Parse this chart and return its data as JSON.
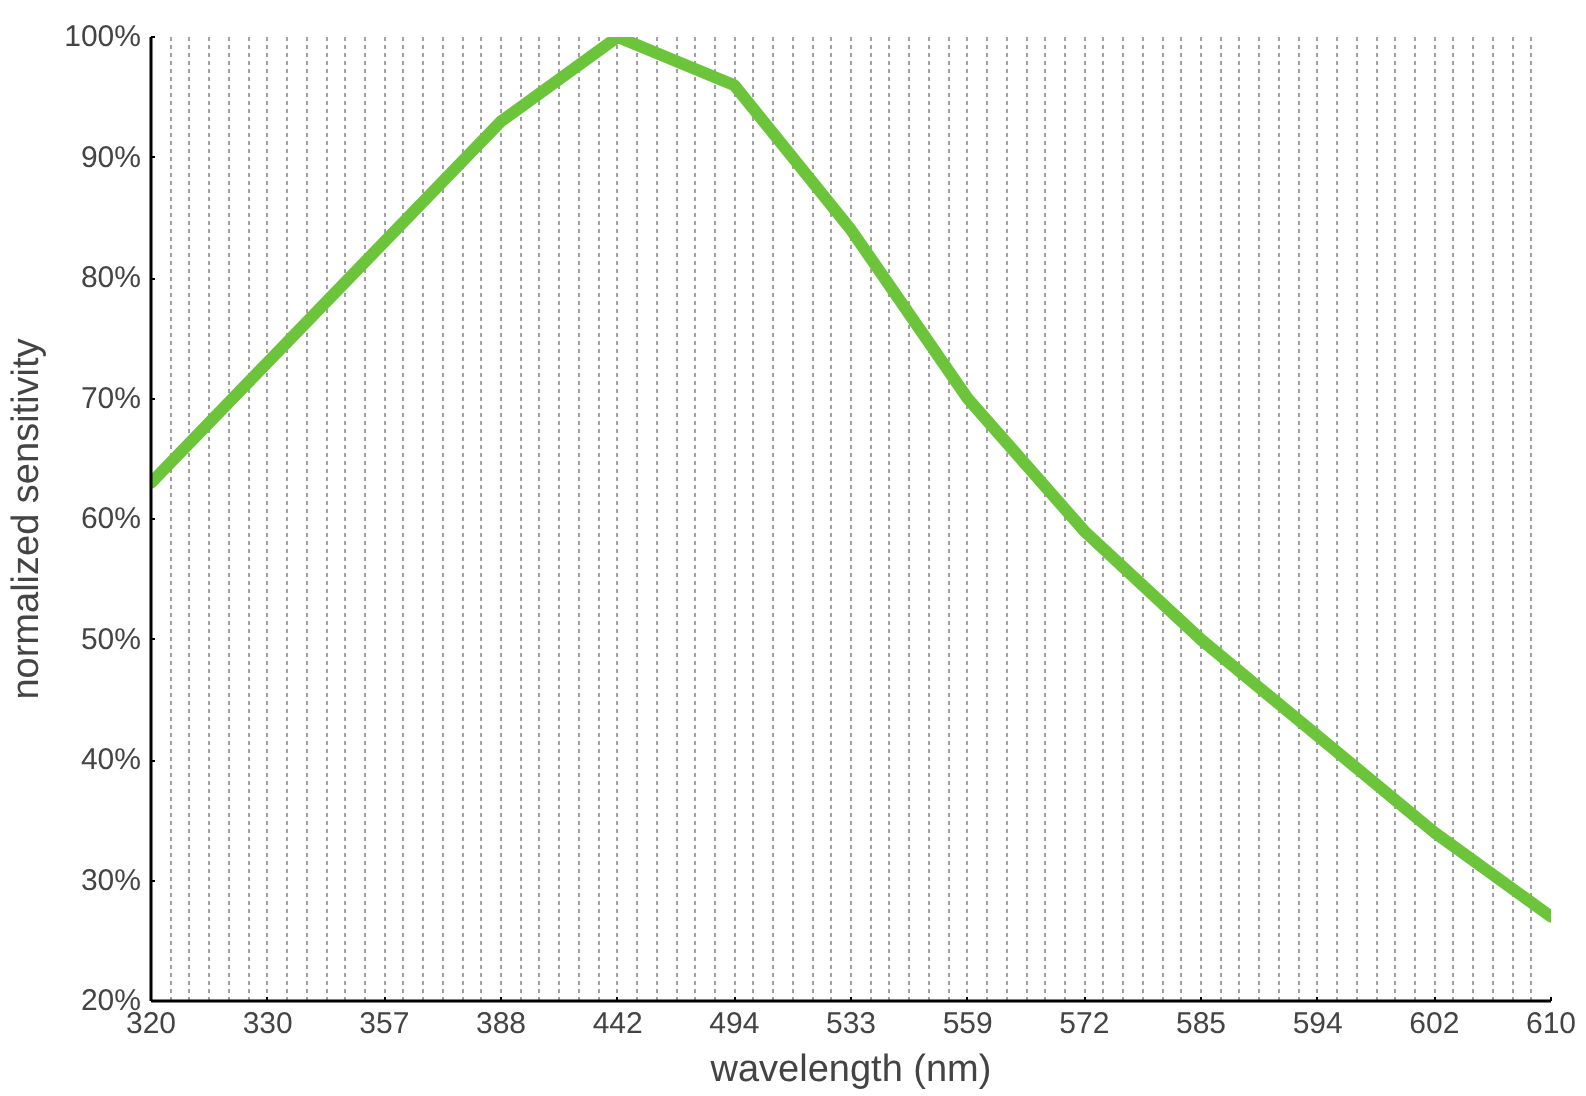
{
  "chart_data": {
    "type": "line",
    "xlabel": "wavelength (nm)",
    "ylabel": "normalized sensitivity",
    "categories": [
      "320",
      "330",
      "357",
      "388",
      "442",
      "494",
      "533",
      "559",
      "572",
      "585",
      "594",
      "602",
      "610"
    ],
    "series": [
      {
        "color": "#6cc43a",
        "values": [
          63,
          73,
          83,
          93,
          100,
          96,
          84,
          70,
          59,
          50,
          42,
          34,
          27
        ]
      }
    ],
    "ylim": [
      20,
      100
    ],
    "yticks": [
      {
        "value": 20,
        "label": "20%"
      },
      {
        "value": 30,
        "label": "30%"
      },
      {
        "value": 40,
        "label": "40%"
      },
      {
        "value": 50,
        "label": "50%"
      },
      {
        "value": 60,
        "label": "60%"
      },
      {
        "value": 70,
        "label": "70%"
      },
      {
        "value": 80,
        "label": "80%"
      },
      {
        "value": 90,
        "label": "90%"
      },
      {
        "value": 100,
        "label": "100%"
      }
    ],
    "grid": "x",
    "marker": "none",
    "line_style": "solid"
  }
}
